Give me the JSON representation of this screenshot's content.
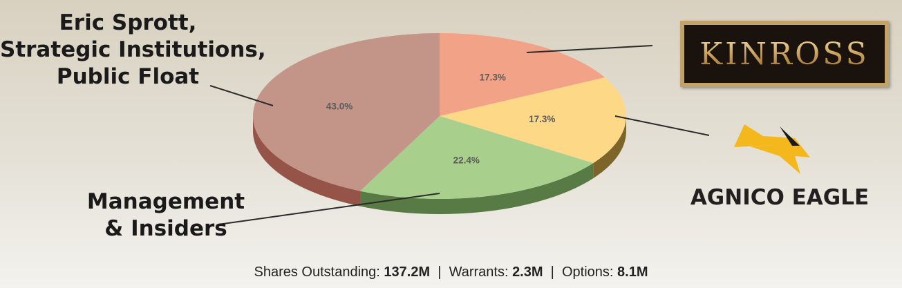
{
  "chart_data": {
    "type": "pie",
    "slices": [
      {
        "label": "KINROSS",
        "value": 17.3,
        "display": "17.3%",
        "top_color": "#f2a387",
        "side_color": "#a45a3e"
      },
      {
        "label": "AGNICO EAGLE",
        "value": 17.3,
        "display": "17.3%",
        "top_color": "#fdd887",
        "side_color": "#7d6428"
      },
      {
        "label": "Management & Insiders",
        "value": 22.4,
        "display": "22.4%",
        "top_color": "#a9cf8d",
        "side_color": "#587a44"
      },
      {
        "label": "Eric Sprott, Strategic Institutions, Public Float",
        "value": 43.0,
        "display": "43.0%",
        "top_color": "#c39588",
        "side_color": "#955447"
      }
    ],
    "start": "12 o'clock",
    "direction": "clockwise",
    "style": "3d"
  },
  "callouts": {
    "public_float_line1": "Eric Sprott,",
    "public_float_line2": "Strategic Institutions,",
    "public_float_line3": "Public Float",
    "management_line1": "Management",
    "management_line2": "& Insiders"
  },
  "logos": {
    "kinross": "KINROSS",
    "agnico": "AGNICO EAGLE",
    "agnico_icon": "eagle-icon"
  },
  "footer": {
    "shares_label": "Shares Outstanding:",
    "shares_value": "137.2M",
    "sep1": "|",
    "warrants_label": "Warrants:",
    "warrants_value": "2.3M",
    "sep2": "|",
    "options_label": "Options:",
    "options_value": "8.1M"
  }
}
